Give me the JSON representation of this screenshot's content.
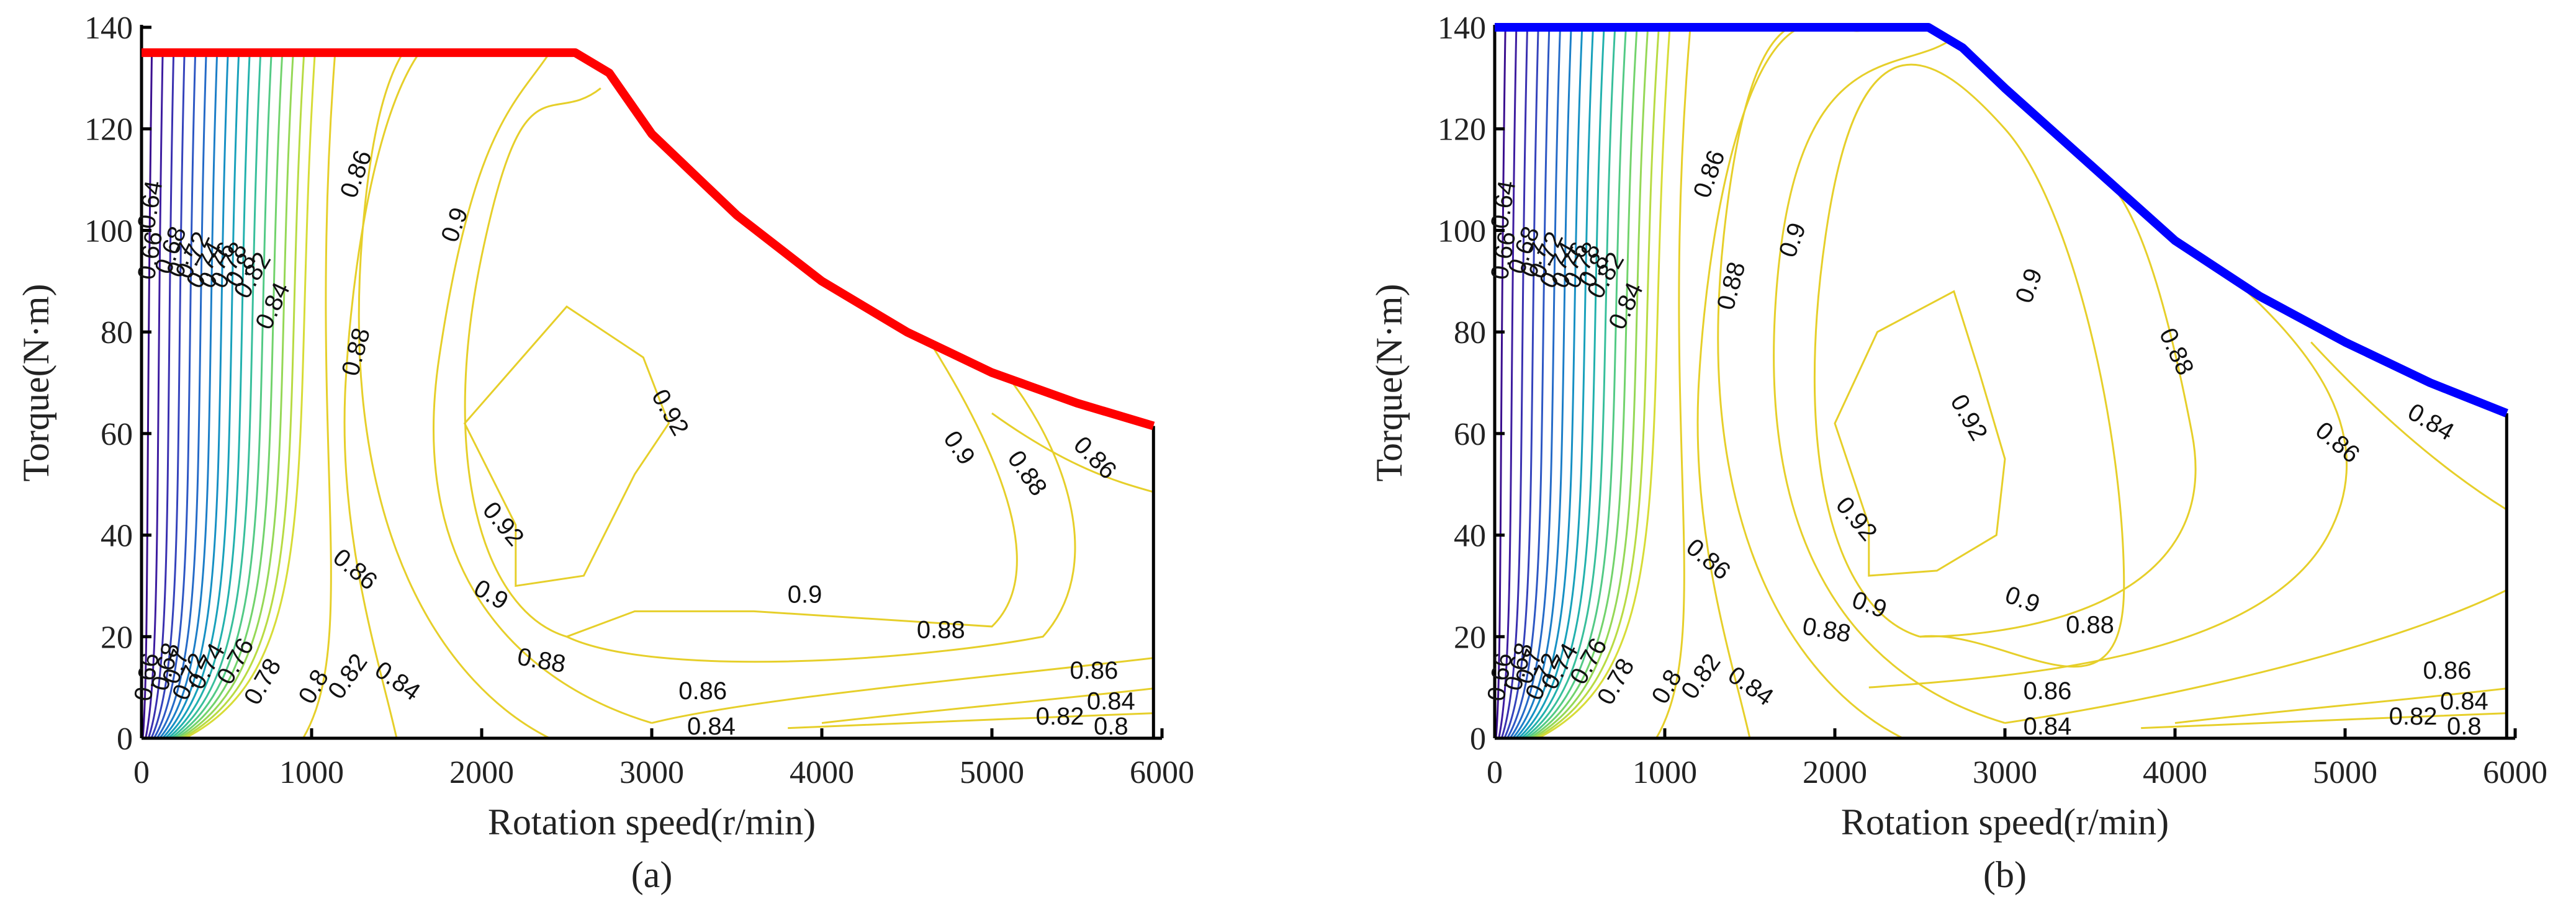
{
  "chart_data": [
    {
      "type": "contour",
      "panel_label": "(a)",
      "xlabel": "Rotation speed(r/min)",
      "ylabel": "Torque(N·m)",
      "xlim": [
        0,
        6000
      ],
      "ylim": [
        0,
        140
      ],
      "x_ticks": [
        "0",
        "1000",
        "2000",
        "3000",
        "4000",
        "5000",
        "6000"
      ],
      "y_ticks": [
        "0",
        "20",
        "40",
        "60",
        "80",
        "100",
        "120",
        "140"
      ],
      "boundary_color": "#ff0000",
      "boundary": [
        [
          0,
          135
        ],
        [
          2550,
          135
        ],
        [
          2750,
          131
        ],
        [
          3000,
          119
        ],
        [
          3500,
          103
        ],
        [
          4000,
          90
        ],
        [
          4500,
          80
        ],
        [
          5000,
          72
        ],
        [
          5500,
          66
        ],
        [
          5950,
          61.5
        ]
      ],
      "contour_labels": [
        {
          "text": "0.64",
          "x": 60,
          "y": 105,
          "r": -80
        },
        {
          "text": "0.66",
          "x": 60,
          "y": 95,
          "r": -80
        },
        {
          "text": "0.68",
          "x": 180,
          "y": 96,
          "r": -70
        },
        {
          "text": "0.7",
          "x": 240,
          "y": 94,
          "r": -65
        },
        {
          "text": "0.72",
          "x": 310,
          "y": 95,
          "r": -65
        },
        {
          "text": "0.74",
          "x": 380,
          "y": 93,
          "r": -60
        },
        {
          "text": "0.76",
          "x": 450,
          "y": 93,
          "r": -60
        },
        {
          "text": "0.78",
          "x": 520,
          "y": 93,
          "r": -60
        },
        {
          "text": "0.8",
          "x": 590,
          "y": 92,
          "r": -60
        },
        {
          "text": "0.82",
          "x": 660,
          "y": 91,
          "r": -60
        },
        {
          "text": "0.84",
          "x": 780,
          "y": 85,
          "r": -65
        },
        {
          "text": "0.86",
          "x": 1270,
          "y": 111,
          "r": -70
        },
        {
          "text": "0.9",
          "x": 1850,
          "y": 101,
          "r": -70
        },
        {
          "text": "0.88",
          "x": 1270,
          "y": 76,
          "r": -75
        },
        {
          "text": "0.92",
          "x": 3100,
          "y": 64,
          "r": 60
        },
        {
          "text": "0.92",
          "x": 2120,
          "y": 42,
          "r": 50
        },
        {
          "text": "0.86",
          "x": 1250,
          "y": 33,
          "r": 40
        },
        {
          "text": "0.9",
          "x": 2050,
          "y": 28,
          "r": 30
        },
        {
          "text": "0.9",
          "x": 3900,
          "y": 28,
          "r": 0
        },
        {
          "text": "0.88",
          "x": 4700,
          "y": 21,
          "r": 0
        },
        {
          "text": "0.88",
          "x": 2350,
          "y": 15,
          "r": 10
        },
        {
          "text": "0.84",
          "x": 1500,
          "y": 11,
          "r": 35
        },
        {
          "text": "0.86",
          "x": 3300,
          "y": 9,
          "r": 0
        },
        {
          "text": "0.84",
          "x": 3350,
          "y": 2,
          "r": 0
        },
        {
          "text": "0.86",
          "x": 5600,
          "y": 13,
          "r": 0
        },
        {
          "text": "0.84",
          "x": 5700,
          "y": 7,
          "r": 0
        },
        {
          "text": "0.82",
          "x": 5400,
          "y": 4,
          "r": 0
        },
        {
          "text": "0.8",
          "x": 5700,
          "y": 2,
          "r": 0
        },
        {
          "text": "0.9",
          "x": 4800,
          "y": 57,
          "r": 55
        },
        {
          "text": "0.88",
          "x": 5200,
          "y": 52,
          "r": 55
        },
        {
          "text": "0.86",
          "x": 5600,
          "y": 55,
          "r": 45
        },
        {
          "text": "0.66",
          "x": 40,
          "y": 12,
          "r": -80
        },
        {
          "text": "0.68",
          "x": 150,
          "y": 14,
          "r": -75
        },
        {
          "text": "0.7",
          "x": 210,
          "y": 14,
          "r": -70
        },
        {
          "text": "0.72",
          "x": 290,
          "y": 12,
          "r": -65
        },
        {
          "text": "0.74",
          "x": 390,
          "y": 14,
          "r": -60
        },
        {
          "text": "0.76",
          "x": 560,
          "y": 15,
          "r": -60
        },
        {
          "text": "0.78",
          "x": 720,
          "y": 11,
          "r": -60
        },
        {
          "text": "0.8",
          "x": 1020,
          "y": 10,
          "r": -60
        },
        {
          "text": "0.82",
          "x": 1220,
          "y": 12,
          "r": -55
        }
      ]
    },
    {
      "type": "contour",
      "panel_label": "(b)",
      "xlabel": "Rotation speed(r/min)",
      "ylabel": "Torque(N·m)",
      "xlim": [
        0,
        6000
      ],
      "ylim": [
        0,
        140
      ],
      "x_ticks": [
        "0",
        "1000",
        "2000",
        "3000",
        "4000",
        "5000",
        "6000"
      ],
      "y_ticks": [
        "0",
        "20",
        "40",
        "60",
        "80",
        "100",
        "120",
        "140"
      ],
      "boundary_color": "#0000ff",
      "boundary": [
        [
          0,
          140
        ],
        [
          2550,
          140
        ],
        [
          2750,
          136
        ],
        [
          3000,
          128
        ],
        [
          3500,
          113
        ],
        [
          4000,
          98
        ],
        [
          4500,
          87
        ],
        [
          5000,
          78
        ],
        [
          5500,
          70
        ],
        [
          5950,
          64
        ]
      ],
      "contour_labels": [
        {
          "text": "0.64",
          "x": 60,
          "y": 105,
          "r": -80
        },
        {
          "text": "0.66",
          "x": 60,
          "y": 95,
          "r": -80
        },
        {
          "text": "0.68",
          "x": 180,
          "y": 96,
          "r": -70
        },
        {
          "text": "0.7",
          "x": 240,
          "y": 94,
          "r": -65
        },
        {
          "text": "0.72",
          "x": 310,
          "y": 95,
          "r": -65
        },
        {
          "text": "0.74",
          "x": 380,
          "y": 93,
          "r": -60
        },
        {
          "text": "0.76",
          "x": 450,
          "y": 93,
          "r": -60
        },
        {
          "text": "0.78",
          "x": 520,
          "y": 93,
          "r": -60
        },
        {
          "text": "0.8",
          "x": 590,
          "y": 92,
          "r": -60
        },
        {
          "text": "0.82",
          "x": 660,
          "y": 91,
          "r": -60
        },
        {
          "text": "0.84",
          "x": 780,
          "y": 85,
          "r": -65
        },
        {
          "text": "0.86",
          "x": 1270,
          "y": 111,
          "r": -70
        },
        {
          "text": "0.88",
          "x": 1400,
          "y": 89,
          "r": -75
        },
        {
          "text": "0.9",
          "x": 1760,
          "y": 98,
          "r": -70
        },
        {
          "text": "0.9",
          "x": 3150,
          "y": 89,
          "r": -70
        },
        {
          "text": "0.92",
          "x": 2780,
          "y": 63,
          "r": 60
        },
        {
          "text": "0.92",
          "x": 2120,
          "y": 43,
          "r": 50
        },
        {
          "text": "0.86",
          "x": 1250,
          "y": 35,
          "r": 40
        },
        {
          "text": "0.88",
          "x": 4000,
          "y": 76,
          "r": 65
        },
        {
          "text": "0.86",
          "x": 4950,
          "y": 58,
          "r": 40
        },
        {
          "text": "0.84",
          "x": 5500,
          "y": 62,
          "r": 30
        },
        {
          "text": "0.9",
          "x": 2200,
          "y": 26,
          "r": 20
        },
        {
          "text": "0.9",
          "x": 3100,
          "y": 27,
          "r": 20
        },
        {
          "text": "0.88",
          "x": 1950,
          "y": 21,
          "r": 10
        },
        {
          "text": "0.88",
          "x": 3500,
          "y": 22,
          "r": 0
        },
        {
          "text": "0.84",
          "x": 1500,
          "y": 10,
          "r": 35
        },
        {
          "text": "0.86",
          "x": 3250,
          "y": 9,
          "r": 0
        },
        {
          "text": "0.84",
          "x": 3250,
          "y": 2,
          "r": 0
        },
        {
          "text": "0.86",
          "x": 5600,
          "y": 13,
          "r": 0
        },
        {
          "text": "0.84",
          "x": 5700,
          "y": 7,
          "r": 0
        },
        {
          "text": "0.82",
          "x": 5400,
          "y": 4,
          "r": 0
        },
        {
          "text": "0.8",
          "x": 5700,
          "y": 2,
          "r": 0
        },
        {
          "text": "0.66",
          "x": 40,
          "y": 12,
          "r": -80
        },
        {
          "text": "0.68",
          "x": 150,
          "y": 14,
          "r": -75
        },
        {
          "text": "0.7",
          "x": 210,
          "y": 14,
          "r": -70
        },
        {
          "text": "0.72",
          "x": 290,
          "y": 12,
          "r": -65
        },
        {
          "text": "0.74",
          "x": 390,
          "y": 14,
          "r": -60
        },
        {
          "text": "0.76",
          "x": 560,
          "y": 15,
          "r": -60
        },
        {
          "text": "0.78",
          "x": 720,
          "y": 11,
          "r": -60
        },
        {
          "text": "0.8",
          "x": 1020,
          "y": 10,
          "r": -60
        },
        {
          "text": "0.82",
          "x": 1220,
          "y": 12,
          "r": -55
        }
      ]
    }
  ]
}
